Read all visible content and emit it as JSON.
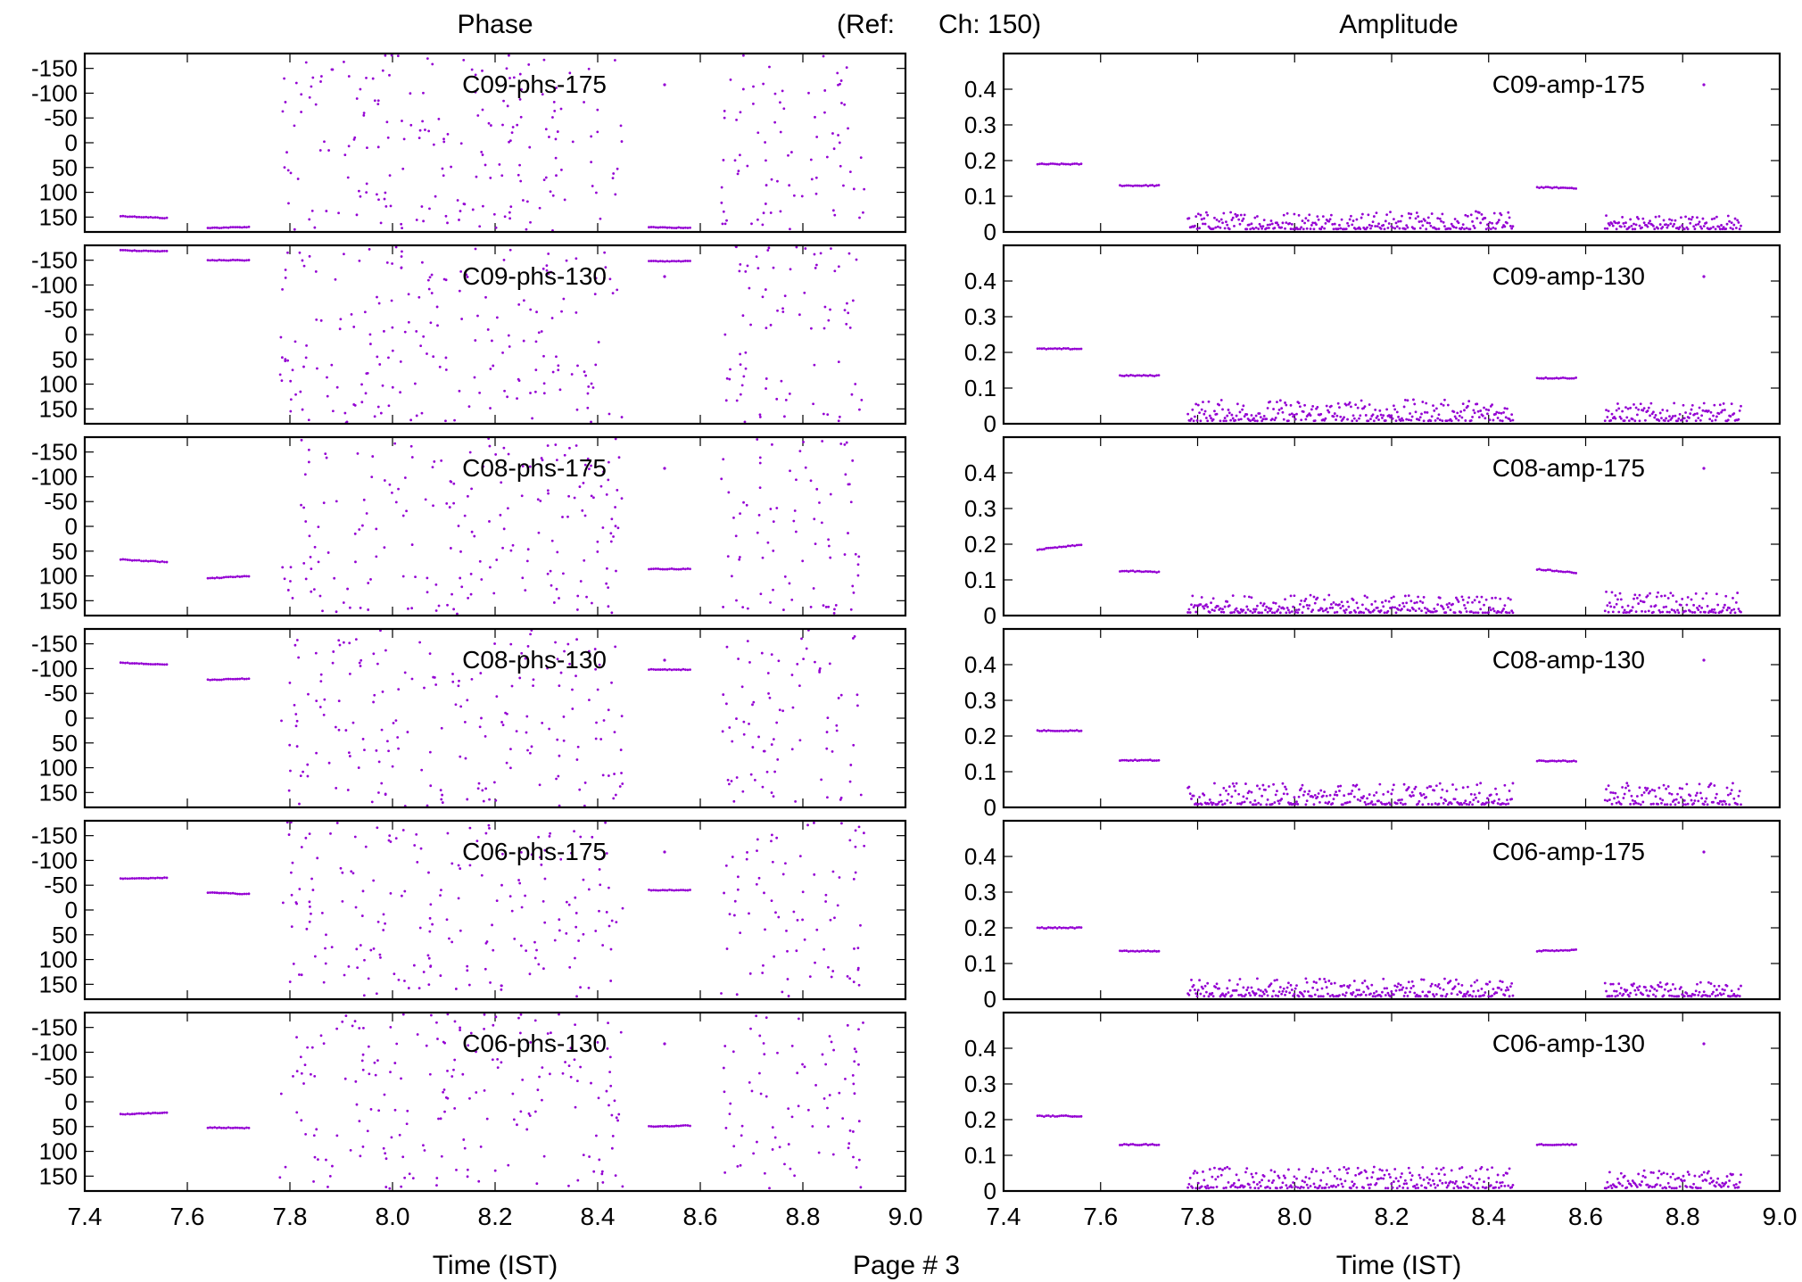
{
  "header": {
    "phase_title": "Phase",
    "ref_label": "(Ref:",
    "ref_channel": "Ch: 150)",
    "amplitude_title": "Amplitude"
  },
  "footer": {
    "left_xlabel": "Time (IST)",
    "page_label": "Page # 3",
    "right_xlabel": "Time (IST)"
  },
  "colors": {
    "points": "#9400d3",
    "frame": "#000000",
    "background": "#ffffff"
  },
  "chart_data": [
    {
      "type": "scatter",
      "title": "",
      "series": [
        {
          "name": "C09-phs-175"
        }
      ],
      "xlim": [
        7.4,
        9.0
      ],
      "ylim": [
        180,
        -180
      ],
      "y_ticks": [
        -150,
        -100,
        -50,
        0,
        50,
        100,
        150
      ],
      "xlabel": "",
      "ylabel": "",
      "segments": [
        {
          "x": [
            7.47,
            7.56
          ],
          "y": [
            148,
            152
          ]
        },
        {
          "x": [
            7.64,
            7.72
          ],
          "y": [
            172,
            170
          ]
        },
        {
          "x": [
            7.78,
            8.45
          ],
          "scatter": "full"
        },
        {
          "x": [
            8.5,
            8.58
          ],
          "y": [
            170,
            172
          ]
        },
        {
          "x": [
            8.64,
            8.92
          ],
          "scatter": "full"
        }
      ]
    },
    {
      "type": "scatter",
      "title": "",
      "series": [
        {
          "name": "C09-amp-175"
        }
      ],
      "xlim": [
        7.4,
        9.0
      ],
      "ylim": [
        0,
        0.5
      ],
      "y_ticks": [
        0,
        0.1,
        0.2,
        0.3,
        0.4
      ],
      "segments": [
        {
          "x": [
            7.47,
            7.56
          ],
          "y": [
            0.19,
            0.19
          ]
        },
        {
          "x": [
            7.64,
            7.72
          ],
          "y": [
            0.13,
            0.13
          ]
        },
        {
          "x": [
            7.78,
            8.45
          ],
          "noise": [
            0.0,
            0.05
          ]
        },
        {
          "x": [
            8.5,
            8.58
          ],
          "y": [
            0.125,
            0.123
          ]
        },
        {
          "x": [
            8.64,
            8.92
          ],
          "noise": [
            0.0,
            0.04
          ]
        }
      ]
    },
    {
      "type": "scatter",
      "title": "",
      "series": [
        {
          "name": "C09-phs-130"
        }
      ],
      "xlim": [
        7.4,
        9.0
      ],
      "ylim": [
        180,
        -180
      ],
      "y_ticks": [
        -150,
        -100,
        -50,
        0,
        50,
        100,
        150
      ],
      "segments": [
        {
          "x": [
            7.47,
            7.56
          ],
          "y": [
            -170,
            -168
          ]
        },
        {
          "x": [
            7.64,
            7.72
          ],
          "y": [
            -150,
            -150
          ]
        },
        {
          "x": [
            7.78,
            8.45
          ],
          "scatter": "full"
        },
        {
          "x": [
            8.5,
            8.58
          ],
          "y": [
            -148,
            -148
          ]
        },
        {
          "x": [
            8.64,
            8.92
          ],
          "scatter": "full"
        }
      ]
    },
    {
      "type": "scatter",
      "title": "",
      "series": [
        {
          "name": "C09-amp-130"
        }
      ],
      "xlim": [
        7.4,
        9.0
      ],
      "ylim": [
        0,
        0.5
      ],
      "y_ticks": [
        0,
        0.1,
        0.2,
        0.3,
        0.4
      ],
      "segments": [
        {
          "x": [
            7.47,
            7.56
          ],
          "y": [
            0.21,
            0.21
          ]
        },
        {
          "x": [
            7.64,
            7.72
          ],
          "y": [
            0.135,
            0.135
          ]
        },
        {
          "x": [
            7.78,
            8.45
          ],
          "noise": [
            0.0,
            0.06
          ]
        },
        {
          "x": [
            8.5,
            8.58
          ],
          "y": [
            0.128,
            0.128
          ]
        },
        {
          "x": [
            8.64,
            8.92
          ],
          "noise": [
            0.0,
            0.05
          ]
        }
      ]
    },
    {
      "type": "scatter",
      "title": "",
      "series": [
        {
          "name": "C08-phs-175"
        }
      ],
      "xlim": [
        7.4,
        9.0
      ],
      "ylim": [
        180,
        -180
      ],
      "y_ticks": [
        -150,
        -100,
        -50,
        0,
        50,
        100,
        150
      ],
      "segments": [
        {
          "x": [
            7.47,
            7.56
          ],
          "y": [
            67,
            72
          ]
        },
        {
          "x": [
            7.64,
            7.72
          ],
          "y": [
            105,
            100
          ]
        },
        {
          "x": [
            7.78,
            8.45
          ],
          "scatter": "full"
        },
        {
          "x": [
            8.5,
            8.58
          ],
          "y": [
            86,
            86
          ]
        },
        {
          "x": [
            8.64,
            8.92
          ],
          "scatter": "full"
        }
      ]
    },
    {
      "type": "scatter",
      "title": "",
      "series": [
        {
          "name": "C08-amp-175"
        }
      ],
      "xlim": [
        7.4,
        9.0
      ],
      "ylim": [
        0,
        0.5
      ],
      "y_ticks": [
        0,
        0.1,
        0.2,
        0.3,
        0.4
      ],
      "segments": [
        {
          "x": [
            7.47,
            7.56
          ],
          "y": [
            0.185,
            0.198
          ]
        },
        {
          "x": [
            7.64,
            7.72
          ],
          "y": [
            0.125,
            0.122
          ]
        },
        {
          "x": [
            7.78,
            8.45
          ],
          "noise": [
            0.0,
            0.05
          ]
        },
        {
          "x": [
            8.5,
            8.58
          ],
          "y": [
            0.13,
            0.12
          ]
        },
        {
          "x": [
            8.64,
            8.92
          ],
          "noise": [
            0.0,
            0.06
          ]
        }
      ]
    },
    {
      "type": "scatter",
      "title": "",
      "series": [
        {
          "name": "C08-phs-130"
        }
      ],
      "xlim": [
        7.4,
        9.0
      ],
      "ylim": [
        180,
        -180
      ],
      "y_ticks": [
        -150,
        -100,
        -50,
        0,
        50,
        100,
        150
      ],
      "segments": [
        {
          "x": [
            7.47,
            7.56
          ],
          "y": [
            -112,
            -108
          ]
        },
        {
          "x": [
            7.64,
            7.72
          ],
          "y": [
            -77,
            -80
          ]
        },
        {
          "x": [
            7.78,
            8.45
          ],
          "scatter": "full"
        },
        {
          "x": [
            8.5,
            8.58
          ],
          "y": [
            -98,
            -98
          ]
        },
        {
          "x": [
            8.64,
            8.92
          ],
          "scatter": "full"
        }
      ]
    },
    {
      "type": "scatter",
      "title": "",
      "series": [
        {
          "name": "C08-amp-130"
        }
      ],
      "xlim": [
        7.4,
        9.0
      ],
      "ylim": [
        0,
        0.5
      ],
      "y_ticks": [
        0,
        0.1,
        0.2,
        0.3,
        0.4
      ],
      "segments": [
        {
          "x": [
            7.47,
            7.56
          ],
          "y": [
            0.215,
            0.215
          ]
        },
        {
          "x": [
            7.64,
            7.72
          ],
          "y": [
            0.132,
            0.132
          ]
        },
        {
          "x": [
            7.78,
            8.45
          ],
          "noise": [
            0.0,
            0.06
          ]
        },
        {
          "x": [
            8.5,
            8.58
          ],
          "y": [
            0.13,
            0.13
          ]
        },
        {
          "x": [
            8.64,
            8.92
          ],
          "noise": [
            0.0,
            0.06
          ]
        }
      ]
    },
    {
      "type": "scatter",
      "title": "",
      "series": [
        {
          "name": "C06-phs-175"
        }
      ],
      "xlim": [
        7.4,
        9.0
      ],
      "ylim": [
        180,
        -180
      ],
      "y_ticks": [
        -150,
        -100,
        -50,
        0,
        50,
        100,
        150
      ],
      "segments": [
        {
          "x": [
            7.47,
            7.56
          ],
          "y": [
            -63,
            -65
          ]
        },
        {
          "x": [
            7.64,
            7.72
          ],
          "y": [
            -35,
            -32
          ]
        },
        {
          "x": [
            7.78,
            8.45
          ],
          "scatter": "full"
        },
        {
          "x": [
            8.5,
            8.58
          ],
          "y": [
            -40,
            -40
          ]
        },
        {
          "x": [
            8.64,
            8.92
          ],
          "scatter": "full"
        }
      ]
    },
    {
      "type": "scatter",
      "title": "",
      "series": [
        {
          "name": "C06-amp-175"
        }
      ],
      "xlim": [
        7.4,
        9.0
      ],
      "ylim": [
        0,
        0.5
      ],
      "y_ticks": [
        0,
        0.1,
        0.2,
        0.3,
        0.4
      ],
      "segments": [
        {
          "x": [
            7.47,
            7.56
          ],
          "y": [
            0.2,
            0.2
          ]
        },
        {
          "x": [
            7.64,
            7.72
          ],
          "y": [
            0.135,
            0.135
          ]
        },
        {
          "x": [
            7.78,
            8.45
          ],
          "noise": [
            0.0,
            0.05
          ]
        },
        {
          "x": [
            8.5,
            8.58
          ],
          "y": [
            0.135,
            0.138
          ]
        },
        {
          "x": [
            8.64,
            8.92
          ],
          "noise": [
            0.0,
            0.04
          ]
        }
      ]
    },
    {
      "type": "scatter",
      "title": "",
      "series": [
        {
          "name": "C06-phs-130"
        }
      ],
      "xlim": [
        7.4,
        9.0
      ],
      "ylim": [
        180,
        -180
      ],
      "y_ticks": [
        -150,
        -100,
        -50,
        0,
        50,
        100,
        150
      ],
      "segments": [
        {
          "x": [
            7.47,
            7.56
          ],
          "y": [
            25,
            22
          ]
        },
        {
          "x": [
            7.64,
            7.72
          ],
          "y": [
            52,
            53
          ]
        },
        {
          "x": [
            7.78,
            8.45
          ],
          "scatter": "full"
        },
        {
          "x": [
            8.5,
            8.58
          ],
          "y": [
            50,
            48
          ]
        },
        {
          "x": [
            8.64,
            8.92
          ],
          "scatter": "full"
        }
      ]
    },
    {
      "type": "scatter",
      "title": "",
      "series": [
        {
          "name": "C06-amp-130"
        }
      ],
      "xlim": [
        7.4,
        9.0
      ],
      "ylim": [
        0,
        0.5
      ],
      "y_ticks": [
        0,
        0.1,
        0.2,
        0.3,
        0.4
      ],
      "segments": [
        {
          "x": [
            7.47,
            7.56
          ],
          "y": [
            0.21,
            0.21
          ]
        },
        {
          "x": [
            7.64,
            7.72
          ],
          "y": [
            0.13,
            0.13
          ]
        },
        {
          "x": [
            7.78,
            8.45
          ],
          "noise": [
            0.0,
            0.06
          ]
        },
        {
          "x": [
            8.5,
            8.58
          ],
          "y": [
            0.13,
            0.13
          ]
        },
        {
          "x": [
            8.64,
            8.92
          ],
          "noise": [
            0.0,
            0.05
          ]
        }
      ]
    }
  ],
  "x_ticks": [
    7.4,
    7.6,
    7.8,
    8.0,
    8.2,
    8.4,
    8.6,
    8.8,
    9.0
  ],
  "x_tick_labels": [
    "7.4",
    "7.6",
    "7.8",
    "8.0",
    "8.2",
    "8.4",
    "8.6",
    "8.8",
    "9.0"
  ],
  "phase_tick_labels": [
    "-150",
    "-100",
    "-50",
    "0",
    "50",
    "100",
    "150"
  ],
  "amp_tick_labels": [
    "0",
    "0.1",
    "0.2",
    "0.3",
    "0.4"
  ]
}
